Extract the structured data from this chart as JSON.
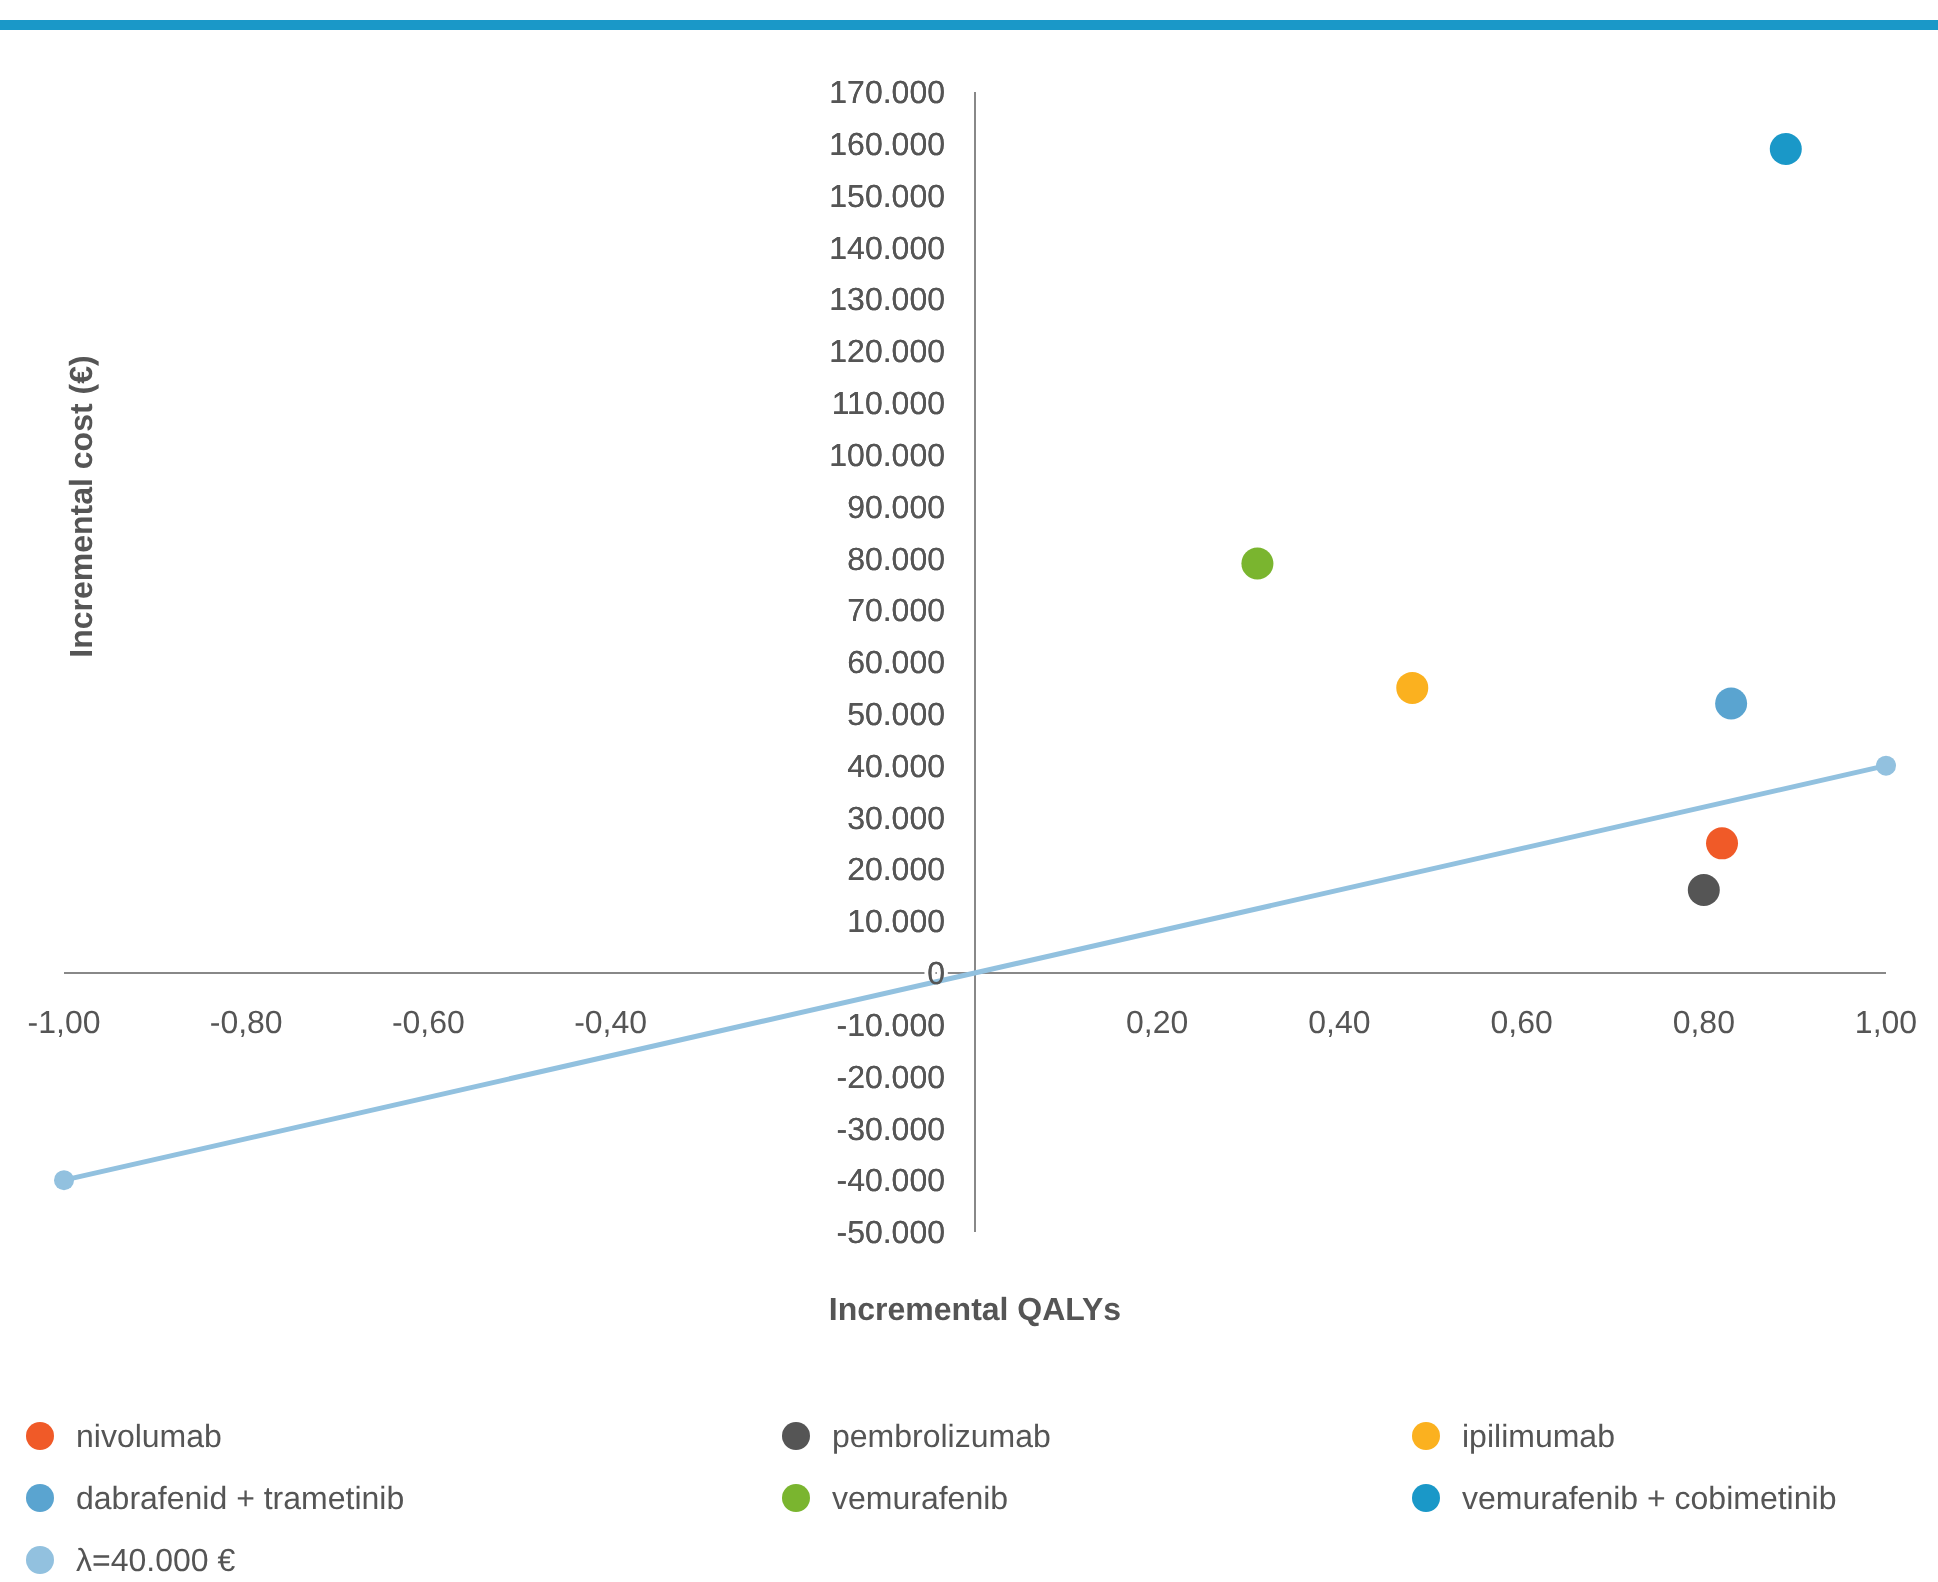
{
  "chart_data": {
    "type": "scatter",
    "xlabel": "Incremental QALYs",
    "ylabel": "Incremental cost (€)",
    "xlim": [
      -1,
      1
    ],
    "ylim": [
      -50000,
      170000
    ],
    "xticks": [
      {
        "value": -1,
        "label": "-1,00"
      },
      {
        "value": -0.8,
        "label": "-0,80"
      },
      {
        "value": -0.6,
        "label": "-0,60"
      },
      {
        "value": -0.4,
        "label": "-0,40"
      },
      {
        "value": 0.2,
        "label": "0,20"
      },
      {
        "value": 0.4,
        "label": "0,40"
      },
      {
        "value": 0.6,
        "label": "0,60"
      },
      {
        "value": 0.8,
        "label": "0,80"
      },
      {
        "value": 1,
        "label": "1,00"
      }
    ],
    "yticks": [
      {
        "value": -50000,
        "label": "-50.000"
      },
      {
        "value": -40000,
        "label": "-40.000"
      },
      {
        "value": -30000,
        "label": "-30.000"
      },
      {
        "value": -20000,
        "label": "-20.000"
      },
      {
        "value": -10000,
        "label": "-10.000"
      },
      0,
      {
        "value": 10000,
        "label": "10.000"
      },
      {
        "value": 20000,
        "label": "20.000"
      },
      {
        "value": 30000,
        "label": "30.000"
      },
      {
        "value": 40000,
        "label": "40.000"
      },
      {
        "value": 50000,
        "label": "50.000"
      },
      {
        "value": 60000,
        "label": "60.000"
      },
      {
        "value": 70000,
        "label": "70.000"
      },
      {
        "value": 80000,
        "label": "80.000"
      },
      {
        "value": 90000,
        "label": "90.000"
      },
      {
        "value": 100000,
        "label": "100.000"
      },
      {
        "value": 110000,
        "label": "110.000"
      },
      {
        "value": 120000,
        "label": "120.000"
      },
      {
        "value": 130000,
        "label": "130.000"
      },
      {
        "value": 140000,
        "label": "140.000"
      },
      {
        "value": 150000,
        "label": "150.000"
      },
      {
        "value": 160000,
        "label": "160.000"
      },
      {
        "value": 170000,
        "label": "170.000"
      }
    ],
    "grid": false,
    "legend": "bottom",
    "marker": "circle",
    "series": [
      {
        "name": "nivolumab",
        "color": "#f05a28",
        "x": [
          0.82
        ],
        "values": [
          25000
        ]
      },
      {
        "name": "pembrolizumab",
        "color": "#555555",
        "x": [
          0.8
        ],
        "values": [
          16000
        ]
      },
      {
        "name": "ipilimumab",
        "color": "#fbb11f",
        "x": [
          0.48
        ],
        "values": [
          55000
        ]
      },
      {
        "name": "dabrafenid + trametinib",
        "color": "#5aa4d0",
        "x": [
          0.83
        ],
        "values": [
          52000
        ]
      },
      {
        "name": "vemurafenib",
        "color": "#7ab52f",
        "x": [
          0.31
        ],
        "values": [
          79000
        ]
      },
      {
        "name": "vemurafenib + cobimetinib",
        "color": "#1a98c8",
        "x": [
          0.89
        ],
        "values": [
          159000
        ]
      },
      {
        "name": "λ=40.000 €",
        "type": "line",
        "color": "#92c1df",
        "x": [
          -1,
          1
        ],
        "values": [
          -40000,
          40000
        ]
      }
    ]
  }
}
